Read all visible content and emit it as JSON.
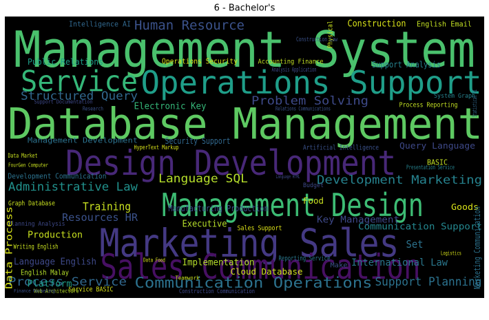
{
  "chart_data": {
    "type": "wordcloud",
    "title": "6 - Bachelor's",
    "background": "#000000",
    "words": [
      {
        "text": "Management System",
        "color": "#4ac16d"
      },
      {
        "text": "Service",
        "color": "#35b779"
      },
      {
        "text": "Operations Support",
        "color": "#1f9e89"
      },
      {
        "text": "Database Management",
        "color": "#5ec962"
      },
      {
        "text": "Design Development",
        "color": "#482878"
      },
      {
        "text": "Management Design",
        "color": "#3dbc74"
      },
      {
        "text": "Marketing Sales",
        "color": "#443983"
      },
      {
        "text": "Sales Communication",
        "color": "#471063"
      },
      {
        "text": "Communication Operations",
        "color": "#2c728e"
      },
      {
        "text": "Human Resource",
        "color": "#3b528b"
      },
      {
        "text": "Structured Query",
        "color": "#31688e"
      },
      {
        "text": "Problem Solving",
        "color": "#3e4a89"
      },
      {
        "text": "Electronic Key",
        "color": "#35b779"
      },
      {
        "text": "Language SQL",
        "color": "#b5de2b"
      },
      {
        "text": "Administrative Law",
        "color": "#21918c"
      },
      {
        "text": "Development Marketing",
        "color": "#26828e"
      },
      {
        "text": "Training",
        "color": "#c8e020"
      },
      {
        "text": "Resources HR",
        "color": "#3b528b"
      },
      {
        "text": "Key Management",
        "color": "#3e4989"
      },
      {
        "text": "Communication Support",
        "color": "#24878e"
      },
      {
        "text": "Process Service",
        "color": "#31688e"
      },
      {
        "text": "Support Planning",
        "color": "#2c728e"
      },
      {
        "text": "International Law",
        "color": "#2a788e"
      },
      {
        "text": "Implementation",
        "color": "#b5de2b"
      },
      {
        "text": "Production",
        "color": "#c8e020"
      },
      {
        "text": "Language English",
        "color": "#3e4989"
      },
      {
        "text": "Platform",
        "color": "#1f9e89"
      },
      {
        "text": "Cloud Database",
        "color": "#d0e11c"
      },
      {
        "text": "Executive",
        "color": "#b5de2b"
      },
      {
        "text": "Construction",
        "color": "#d8e219"
      },
      {
        "text": "English Email",
        "color": "#c2df23"
      },
      {
        "text": "Intelligence AI",
        "color": "#31688e"
      },
      {
        "text": "Public Relations",
        "color": "#1f9e89"
      },
      {
        "text": "Operations Security",
        "color": "#d8e219"
      },
      {
        "text": "Accounting Finance",
        "color": "#c2df23"
      },
      {
        "text": "Support Analysis",
        "color": "#26828e"
      },
      {
        "text": "Security Support",
        "color": "#31688e"
      },
      {
        "text": "Management Development",
        "color": "#2c728e"
      },
      {
        "text": "Query Language",
        "color": "#3e4989"
      },
      {
        "text": "Manufacturing Production",
        "color": "#3b528b"
      },
      {
        "text": "Goods",
        "color": "#d8e219"
      },
      {
        "text": "Sales Support",
        "color": "#dde318"
      },
      {
        "text": "Reporting Service",
        "color": "#2a788e"
      },
      {
        "text": "English Malay",
        "color": "#b5de2b"
      },
      {
        "text": "Writing English",
        "color": "#c8e020"
      },
      {
        "text": "Graph Database",
        "color": "#c8e020"
      },
      {
        "text": "Planning Analysis",
        "color": "#3e4989"
      },
      {
        "text": "Process Reporting",
        "color": "#c2df23"
      },
      {
        "text": "Artificial Intelligence",
        "color": "#3b528b"
      },
      {
        "text": "Food",
        "color": "#c8e020"
      },
      {
        "text": "BASIC",
        "color": "#c2df23"
      },
      {
        "text": "Service BASIC",
        "color": "#d8e219"
      },
      {
        "text": "Data Process",
        "color": "#d8e219"
      },
      {
        "text": "Marketing Communication",
        "color": "#2c728e"
      },
      {
        "text": "Physical",
        "color": "#c8e020"
      },
      {
        "text": "Set",
        "color": "#2c728e"
      },
      {
        "text": "Make",
        "color": "#3b528b"
      },
      {
        "text": "HyperText Markup",
        "color": "#d8e219"
      },
      {
        "text": "Data Market",
        "color": "#c8e020"
      },
      {
        "text": "Presentation Service",
        "color": "#26828e"
      },
      {
        "text": "Budget",
        "color": "#3e4989"
      },
      {
        "text": "Statistical AI",
        "color": "#31688e"
      },
      {
        "text": "Web Architecture",
        "color": "#b5de2b"
      },
      {
        "text": "Development Communication",
        "color": "#2c728e"
      },
      {
        "text": "Research",
        "color": "#3b528b"
      },
      {
        "text": "Support Documentation",
        "color": "#3e4989"
      },
      {
        "text": "System Graph",
        "color": "#26828e"
      },
      {
        "text": "Analysis Application",
        "color": "#3e4989"
      },
      {
        "text": "Data Food",
        "color": "#d8e219"
      },
      {
        "text": "Finance Marketing",
        "color": "#3b528b"
      },
      {
        "text": "Construction Communication",
        "color": "#3e4989"
      },
      {
        "text": "Construction Law",
        "color": "#3b528b"
      },
      {
        "text": "Relations Communications",
        "color": "#3b528b"
      },
      {
        "text": "Teamwork",
        "color": "#c8e020"
      },
      {
        "text": "Logistics",
        "color": "#d8e219"
      },
      {
        "text": "Language HTML",
        "color": "#3e4989"
      },
      {
        "text": "FourGen Computer",
        "color": "#c8e020"
      }
    ]
  }
}
